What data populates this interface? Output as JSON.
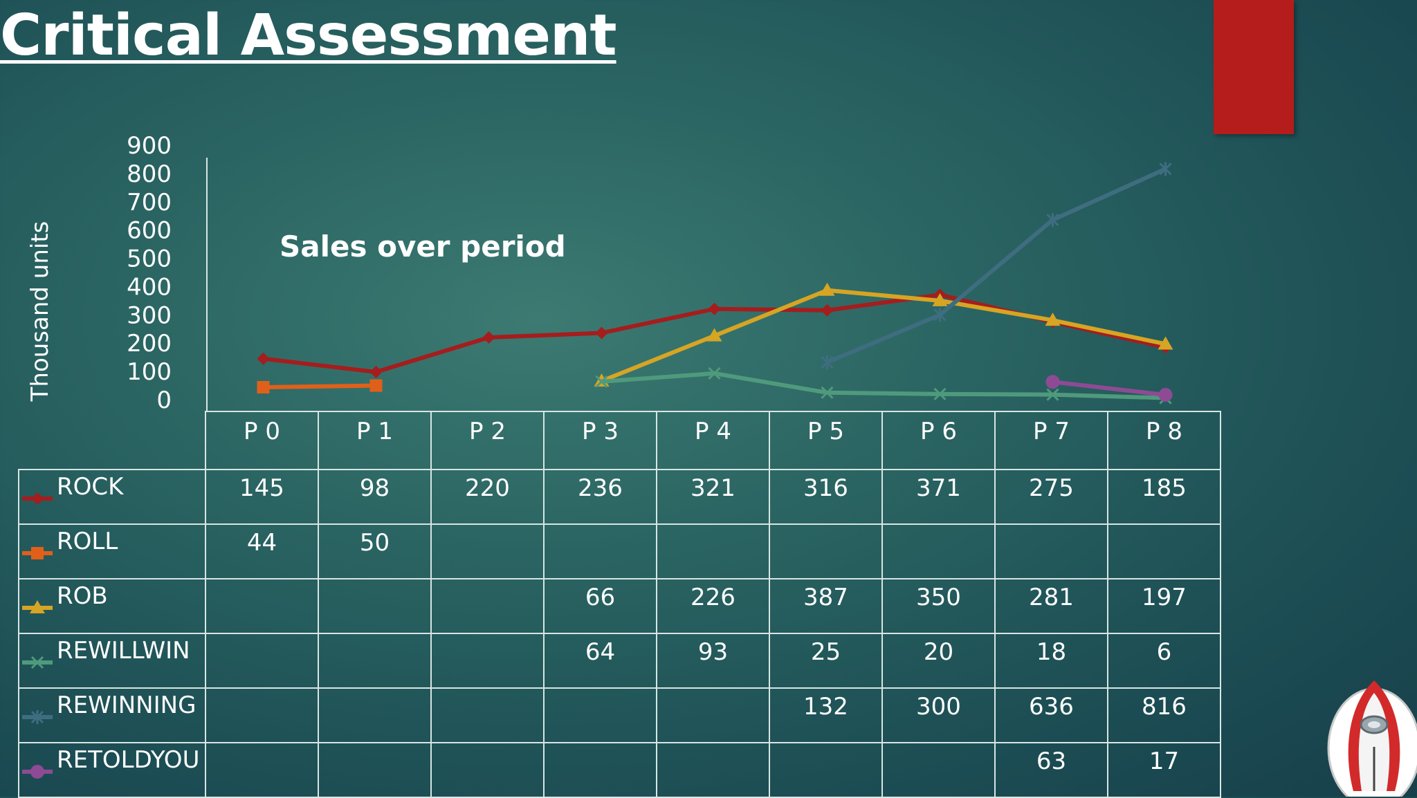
{
  "slide": {
    "title": "Critical Assessment"
  },
  "chart_data": {
    "type": "line",
    "title": "Sales over period",
    "ylabel": "Thousand units",
    "xlabel": "",
    "ylim": [
      0,
      900
    ],
    "yticks": [
      0,
      100,
      200,
      300,
      400,
      500,
      600,
      700,
      800,
      900
    ],
    "categories": [
      "P 0",
      "P 1",
      "P 2",
      "P 3",
      "P 4",
      "P 5",
      "P 6",
      "P 7",
      "P 8"
    ],
    "legend": "table",
    "series": [
      {
        "name": "ROCK",
        "color": "#a51d1d",
        "marker": "diamond",
        "values": [
          145,
          98,
          220,
          236,
          321,
          316,
          371,
          275,
          185
        ]
      },
      {
        "name": "ROLL",
        "color": "#e0601a",
        "marker": "square",
        "values": [
          44,
          50,
          null,
          null,
          null,
          null,
          null,
          null,
          null
        ]
      },
      {
        "name": "ROB",
        "color": "#d6a524",
        "marker": "triangle",
        "values": [
          null,
          null,
          null,
          66,
          226,
          387,
          350,
          281,
          197
        ]
      },
      {
        "name": "REWILLWIN",
        "color": "#4f9a7c",
        "marker": "x",
        "values": [
          null,
          null,
          null,
          64,
          93,
          25,
          20,
          18,
          6
        ]
      },
      {
        "name": "REWINNING",
        "color": "#3f6d80",
        "marker": "star",
        "values": [
          null,
          null,
          null,
          null,
          null,
          132,
          300,
          636,
          816
        ]
      },
      {
        "name": "RETOLDYOU",
        "color": "#8e4b94",
        "marker": "circle",
        "values": [
          null,
          null,
          null,
          null,
          null,
          null,
          null,
          63,
          17
        ]
      }
    ]
  },
  "colors": {
    "bookmark": "#b51c1c",
    "table_lines": "#d8e6e4"
  },
  "icons": {
    "corner_badge": "rocket-icon"
  }
}
